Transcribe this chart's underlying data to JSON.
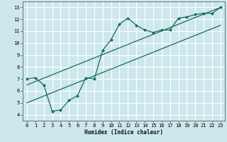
{
  "xlabel": "Humidex (Indice chaleur)",
  "bg_color": "#cce8ec",
  "grid_color": "#ffffff",
  "line_color": "#1a6b5a",
  "xlim": [
    -0.5,
    23.5
  ],
  "ylim": [
    3.5,
    13.5
  ],
  "xticks": [
    0,
    1,
    2,
    3,
    4,
    5,
    6,
    7,
    8,
    9,
    10,
    11,
    12,
    13,
    14,
    15,
    16,
    17,
    18,
    19,
    20,
    21,
    22,
    23
  ],
  "yticks": [
    4,
    5,
    6,
    7,
    8,
    9,
    10,
    11,
    12,
    13
  ],
  "data_x": [
    0,
    1,
    2,
    3,
    4,
    5,
    6,
    7,
    8,
    9,
    10,
    11,
    12,
    13,
    14,
    15,
    16,
    17,
    18,
    19,
    20,
    21,
    22,
    23
  ],
  "data_y": [
    7.0,
    7.1,
    6.5,
    4.3,
    4.4,
    5.2,
    5.6,
    7.1,
    7.0,
    9.4,
    10.3,
    11.6,
    12.1,
    11.5,
    11.1,
    10.9,
    11.1,
    11.1,
    12.1,
    12.2,
    12.4,
    12.5,
    12.5,
    13.0
  ],
  "line1_x": [
    0,
    23
  ],
  "line1_y": [
    6.5,
    13.0
  ],
  "line2_x": [
    0,
    23
  ],
  "line2_y": [
    5.0,
    11.5
  ],
  "marker": "D",
  "marker_size": 2.0
}
